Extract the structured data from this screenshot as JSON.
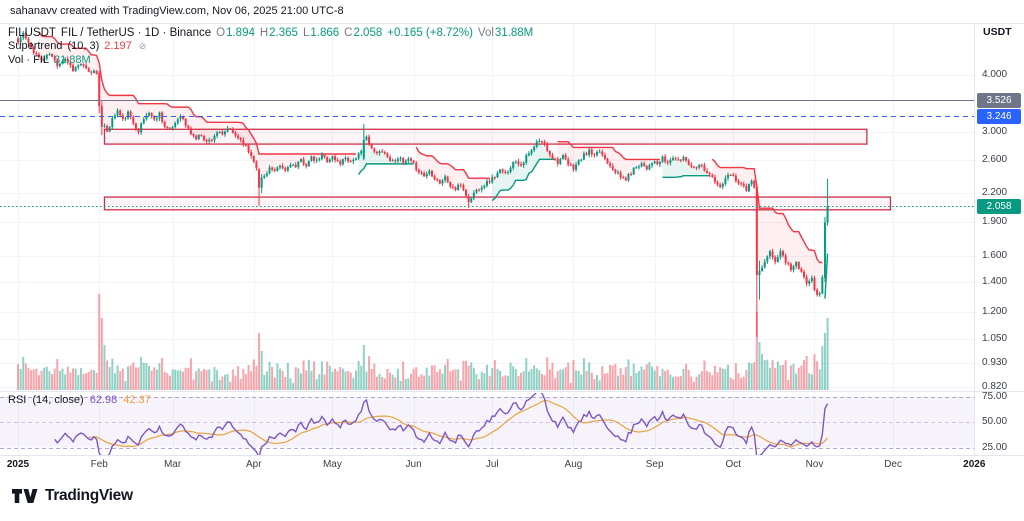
{
  "titlebar": {
    "text": "sahanavv created with TradingView.com, Nov 06, 2025 21:00 UTC-8"
  },
  "legend": {
    "symbol": "FILUSDT",
    "meta": "FIL / TetherUS · 1D · Binance",
    "ohlc": {
      "o_label": "O",
      "o": "1.894",
      "h_label": "H",
      "h": "2.365",
      "l_label": "L",
      "l": "1.866",
      "c_label": "C",
      "c": "2.058",
      "change": "+0.165 (+8.72%)",
      "vol_label": "Vol",
      "vol": "31.88M"
    },
    "supertrend": {
      "name": "Supertrend",
      "params": "(10, 3)",
      "value": "2.197"
    },
    "volume_row": {
      "name": "Vol · FIL",
      "value": "31.88M"
    }
  },
  "rsi_legend": {
    "name": "RSI",
    "params": "(14, close)",
    "value": "62.98",
    "ma": "42.37"
  },
  "price_axis": {
    "currency": "USDT",
    "ticks": [
      {
        "label": "4.000",
        "value": 4.0
      },
      {
        "label": "3.000",
        "value": 3.0
      },
      {
        "label": "2.600",
        "value": 2.6
      },
      {
        "label": "2.200",
        "value": 2.2
      },
      {
        "label": "1.900",
        "value": 1.9
      },
      {
        "label": "1.600",
        "value": 1.6
      },
      {
        "label": "1.400",
        "value": 1.4
      },
      {
        "label": "1.200",
        "value": 1.2
      },
      {
        "label": "1.050",
        "value": 1.05
      },
      {
        "label": "0.930",
        "value": 0.93
      },
      {
        "label": "0.820",
        "value": 0.82
      }
    ],
    "badges": [
      {
        "label": "3.526",
        "value": 3.526,
        "color": "#6e7687"
      },
      {
        "label": "3.246",
        "value": 3.246,
        "color": "#2962ff"
      },
      {
        "label": "2.058",
        "value": 2.058,
        "color": "#089981"
      }
    ]
  },
  "rsi_axis": [
    {
      "label": "75.00",
      "value": 75
    },
    {
      "label": "50.00",
      "value": 50
    },
    {
      "label": "25.00",
      "value": 25
    }
  ],
  "time_axis": [
    {
      "label": "2025",
      "day": 0,
      "year": true
    },
    {
      "label": "Feb",
      "day": 31,
      "year": false
    },
    {
      "label": "Mar",
      "day": 59,
      "year": false
    },
    {
      "label": "Apr",
      "day": 90,
      "year": false
    },
    {
      "label": "May",
      "day": 120,
      "year": false
    },
    {
      "label": "Jun",
      "day": 151,
      "year": false
    },
    {
      "label": "Jul",
      "day": 181,
      "year": false
    },
    {
      "label": "Aug",
      "day": 212,
      "year": false
    },
    {
      "label": "Sep",
      "day": 243,
      "year": false
    },
    {
      "label": "Oct",
      "day": 273,
      "year": false
    },
    {
      "label": "Nov",
      "day": 304,
      "year": false
    },
    {
      "label": "Dec",
      "day": 334,
      "year": false
    },
    {
      "label": "2026",
      "day": 365,
      "year": true
    }
  ],
  "footer": {
    "brand": "TradingView"
  },
  "chart_data": {
    "type": "candlestick",
    "symbol": "FILUSDT",
    "interval": "1D",
    "exchange": "Binance",
    "scale": "log",
    "seed": 11,
    "num_days": 310,
    "last_candle": {
      "open": 1.894,
      "high": 2.365,
      "low": 1.866,
      "close": 2.058,
      "change": 0.165,
      "change_pct": 8.72,
      "volume": "31.88M"
    },
    "anchors": [
      [
        0,
        4.72
      ],
      [
        2,
        4.95
      ],
      [
        4,
        4.68
      ],
      [
        6,
        4.52
      ],
      [
        9,
        4.3
      ],
      [
        12,
        4.46
      ],
      [
        15,
        4.22
      ],
      [
        18,
        4.36
      ],
      [
        21,
        4.12
      ],
      [
        24,
        4.24
      ],
      [
        27,
        4.05
      ],
      [
        29,
        4.08
      ],
      [
        30,
        4.05
      ],
      [
        31,
        3.42
      ],
      [
        32,
        3.08
      ],
      [
        33,
        3.06
      ],
      [
        34,
        3.02
      ],
      [
        35,
        3.1
      ],
      [
        36,
        3.2
      ],
      [
        38,
        3.34
      ],
      [
        40,
        3.18
      ],
      [
        42,
        3.3
      ],
      [
        44,
        3.14
      ],
      [
        46,
        3.02
      ],
      [
        48,
        3.2
      ],
      [
        50,
        3.32
      ],
      [
        52,
        3.18
      ],
      [
        54,
        3.3
      ],
      [
        56,
        3.08
      ],
      [
        58,
        3.02
      ],
      [
        60,
        3.14
      ],
      [
        62,
        3.28
      ],
      [
        64,
        3.1
      ],
      [
        66,
        2.98
      ],
      [
        68,
        2.9
      ],
      [
        70,
        2.96
      ],
      [
        72,
        2.85
      ],
      [
        74,
        2.9
      ],
      [
        76,
        3.0
      ],
      [
        78,
        2.94
      ],
      [
        80,
        3.06
      ],
      [
        82,
        2.98
      ],
      [
        84,
        2.92
      ],
      [
        86,
        2.84
      ],
      [
        88,
        2.72
      ],
      [
        90,
        2.6
      ],
      [
        91,
        2.52
      ],
      [
        92,
        2.26
      ],
      [
        93,
        2.38
      ],
      [
        94,
        2.4
      ],
      [
        96,
        2.5
      ],
      [
        98,
        2.44
      ],
      [
        100,
        2.52
      ],
      [
        102,
        2.46
      ],
      [
        104,
        2.56
      ],
      [
        106,
        2.5
      ],
      [
        108,
        2.6
      ],
      [
        110,
        2.54
      ],
      [
        112,
        2.62
      ],
      [
        114,
        2.58
      ],
      [
        116,
        2.66
      ],
      [
        118,
        2.6
      ],
      [
        120,
        2.64
      ],
      [
        121,
        2.6
      ],
      [
        123,
        2.56
      ],
      [
        125,
        2.64
      ],
      [
        127,
        2.58
      ],
      [
        129,
        2.64
      ],
      [
        131,
        2.7
      ],
      [
        132,
        2.88
      ],
      [
        133,
        2.96
      ],
      [
        134,
        2.82
      ],
      [
        135,
        2.74
      ],
      [
        137,
        2.68
      ],
      [
        139,
        2.74
      ],
      [
        141,
        2.64
      ],
      [
        143,
        2.58
      ],
      [
        145,
        2.64
      ],
      [
        147,
        2.56
      ],
      [
        149,
        2.6
      ],
      [
        151,
        2.54
      ],
      [
        153,
        2.46
      ],
      [
        155,
        2.4
      ],
      [
        157,
        2.46
      ],
      [
        159,
        2.38
      ],
      [
        161,
        2.32
      ],
      [
        163,
        2.38
      ],
      [
        165,
        2.28
      ],
      [
        167,
        2.24
      ],
      [
        169,
        2.3
      ],
      [
        171,
        2.18
      ],
      [
        172,
        2.1
      ],
      [
        174,
        2.2
      ],
      [
        176,
        2.26
      ],
      [
        178,
        2.3
      ],
      [
        180,
        2.34
      ],
      [
        182,
        2.4
      ],
      [
        184,
        2.46
      ],
      [
        186,
        2.42
      ],
      [
        188,
        2.52
      ],
      [
        190,
        2.6
      ],
      [
        192,
        2.54
      ],
      [
        194,
        2.64
      ],
      [
        196,
        2.72
      ],
      [
        198,
        2.84
      ],
      [
        200,
        2.86
      ],
      [
        202,
        2.74
      ],
      [
        204,
        2.64
      ],
      [
        206,
        2.58
      ],
      [
        208,
        2.64
      ],
      [
        210,
        2.54
      ],
      [
        212,
        2.5
      ],
      [
        214,
        2.58
      ],
      [
        216,
        2.66
      ],
      [
        218,
        2.72
      ],
      [
        220,
        2.64
      ],
      [
        222,
        2.72
      ],
      [
        224,
        2.62
      ],
      [
        226,
        2.54
      ],
      [
        228,
        2.46
      ],
      [
        230,
        2.38
      ],
      [
        232,
        2.36
      ],
      [
        234,
        2.44
      ],
      [
        236,
        2.52
      ],
      [
        238,
        2.56
      ],
      [
        240,
        2.5
      ],
      [
        242,
        2.58
      ],
      [
        244,
        2.54
      ],
      [
        246,
        2.62
      ],
      [
        248,
        2.56
      ],
      [
        250,
        2.64
      ],
      [
        252,
        2.58
      ],
      [
        254,
        2.64
      ],
      [
        256,
        2.56
      ],
      [
        258,
        2.5
      ],
      [
        260,
        2.56
      ],
      [
        262,
        2.48
      ],
      [
        264,
        2.42
      ],
      [
        266,
        2.32
      ],
      [
        268,
        2.26
      ],
      [
        270,
        2.36
      ],
      [
        272,
        2.42
      ],
      [
        274,
        2.36
      ],
      [
        276,
        2.3
      ],
      [
        278,
        2.24
      ],
      [
        280,
        2.32
      ],
      [
        281,
        2.28
      ],
      [
        282,
        1.45
      ],
      [
        283,
        1.48
      ],
      [
        284,
        1.5
      ],
      [
        285,
        1.55
      ],
      [
        287,
        1.62
      ],
      [
        289,
        1.56
      ],
      [
        291,
        1.63
      ],
      [
        293,
        1.56
      ],
      [
        295,
        1.5
      ],
      [
        297,
        1.54
      ],
      [
        299,
        1.46
      ],
      [
        301,
        1.4
      ],
      [
        303,
        1.44
      ],
      [
        304,
        1.36
      ],
      [
        305,
        1.3
      ],
      [
        306,
        1.33
      ],
      [
        307,
        1.43
      ],
      [
        308,
        1.894
      ],
      [
        309,
        2.058
      ]
    ],
    "special_candles": {
      "31": [
        4.05,
        4.09,
        3.3,
        3.42
      ],
      "32": [
        3.42,
        3.5,
        2.95,
        3.08
      ],
      "92": [
        2.48,
        2.5,
        2.06,
        2.26
      ],
      "93": [
        2.26,
        2.42,
        2.2,
        2.38
      ],
      "132": [
        2.62,
        3.12,
        2.6,
        2.88
      ],
      "172": [
        2.16,
        2.19,
        2.04,
        2.1
      ],
      "282": [
        2.27,
        2.3,
        1.06,
        1.45
      ],
      "283": [
        1.45,
        1.56,
        1.28,
        1.48
      ],
      "308": [
        1.43,
        1.95,
        1.4,
        1.894
      ],
      "309": [
        1.894,
        2.365,
        1.866,
        2.058
      ]
    },
    "volume_overrides": {
      "2": 1.1,
      "31": 3.2,
      "32": 2.4,
      "33": 1.5,
      "92": 1.9,
      "93": 1.3,
      "132": 1.5,
      "182": 1.0,
      "282": 2.6,
      "283": 1.6,
      "284": 1.2,
      "308": 1.9,
      "309": 2.4
    },
    "price_lines": [
      {
        "value": 3.526,
        "style": "solid",
        "color": "#6e7687"
      },
      {
        "value": 3.246,
        "style": "dashed",
        "color": "#2962ff"
      },
      {
        "value": 2.058,
        "style": "dotted",
        "color": "#089981"
      }
    ],
    "boxes": [
      {
        "d1": 33,
        "d2": 324,
        "p1": 3.04,
        "p2": 2.82,
        "color": "#cc3049",
        "fill": "rgba(204,48,73,0.05)"
      },
      {
        "d1": 33,
        "d2": 333,
        "p1": 2.155,
        "p2": 2.02,
        "color": "#cc3049",
        "fill": "rgba(204,48,73,0.05)"
      }
    ],
    "supertrend": {
      "period": 10,
      "multiplier": 3,
      "current": 2.197
    },
    "rsi": {
      "period": 14,
      "upper": 75,
      "middle": 50,
      "lower": 25,
      "current": 62.98,
      "ma_current": 42.37
    },
    "colors": {
      "up": "#089981",
      "down": "#f23645",
      "vol_up": "rgba(8,153,129,0.45)",
      "vol_down": "rgba(242,54,69,0.45)",
      "st_fill_down": "rgba(242,54,69,0.08)",
      "st_fill_up": "rgba(8,153,129,0.10)",
      "rsi_line": "#7e57c2",
      "rsi_ma": "#e8a33d",
      "rsi_band": "rgba(126,87,194,0.07)"
    }
  }
}
